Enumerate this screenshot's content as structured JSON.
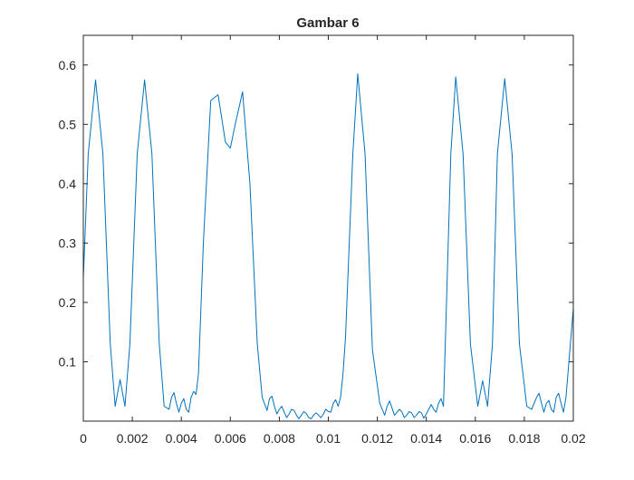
{
  "chart_data": {
    "type": "line",
    "title": "Gambar 6",
    "xlabel": "",
    "ylabel": "",
    "xlim": [
      0,
      0.02
    ],
    "ylim": [
      0,
      0.65
    ],
    "x_ticks": [
      0,
      0.002,
      0.004,
      0.006,
      0.008,
      0.01,
      0.012,
      0.014,
      0.016,
      0.018,
      0.02
    ],
    "x_tick_labels": [
      "0",
      "0.002",
      "0.004",
      "0.006",
      "0.008",
      "0.01",
      "0.012",
      "0.014",
      "0.016",
      "0.018",
      "0.02"
    ],
    "y_ticks": [
      0.1,
      0.2,
      0.3,
      0.4,
      0.5,
      0.6
    ],
    "y_tick_labels": [
      "0.1",
      "0.2",
      "0.3",
      "0.4",
      "0.5",
      "0.6"
    ],
    "grid": false,
    "line_color": "#0072BD",
    "series": [
      {
        "x": [
          0,
          0.0002,
          0.0005,
          0.0008,
          0.0011,
          0.0013,
          0.0015,
          0.0017,
          0.0019,
          0.0022,
          0.0025,
          0.0028,
          0.0031,
          0.0033,
          0.0035,
          0.0036,
          0.0037,
          0.0038,
          0.0039,
          0.004,
          0.0041,
          0.0042,
          0.0043,
          0.0044,
          0.0045,
          0.0046,
          0.0047,
          0.0049,
          0.0052,
          0.0055,
          0.0058,
          0.006,
          0.0062,
          0.0065,
          0.0068,
          0.0071,
          0.0073,
          0.0075,
          0.0076,
          0.0077,
          0.0078,
          0.0079,
          0.008,
          0.0081,
          0.0082,
          0.0083,
          0.0084,
          0.0085,
          0.0086,
          0.0087,
          0.0088,
          0.0089,
          0.009,
          0.0091,
          0.0092,
          0.0093,
          0.0094,
          0.0095,
          0.0096,
          0.0097,
          0.0098,
          0.0099,
          0.01,
          0.0101,
          0.0102,
          0.0103,
          0.0104,
          0.0105,
          0.0106,
          0.0107,
          0.011,
          0.0112,
          0.0115,
          0.0118,
          0.0121,
          0.0123,
          0.0124,
          0.0125,
          0.0126,
          0.0127,
          0.0128,
          0.0129,
          0.013,
          0.0131,
          0.0132,
          0.0133,
          0.0134,
          0.0135,
          0.0136,
          0.0137,
          0.0138,
          0.0139,
          0.014,
          0.0141,
          0.0142,
          0.0143,
          0.0144,
          0.0145,
          0.0146,
          0.0147,
          0.015,
          0.0152,
          0.0155,
          0.0158,
          0.0161,
          0.0163,
          0.0165,
          0.0167,
          0.0169,
          0.0172,
          0.0175,
          0.0178,
          0.0181,
          0.0183,
          0.0185,
          0.0186,
          0.0187,
          0.0188,
          0.0189,
          0.019,
          0.0191,
          0.0192,
          0.0193,
          0.0194,
          0.0195,
          0.0196,
          0.0197,
          0.0198,
          0.0199,
          0.02
        ],
        "y": [
          0.24,
          0.45,
          0.575,
          0.45,
          0.13,
          0.025,
          0.07,
          0.025,
          0.13,
          0.45,
          0.575,
          0.45,
          0.13,
          0.025,
          0.02,
          0.04,
          0.048,
          0.03,
          0.015,
          0.03,
          0.038,
          0.02,
          0.015,
          0.04,
          0.05,
          0.045,
          0.08,
          0.3,
          0.54,
          0.55,
          0.47,
          0.46,
          0.5,
          0.555,
          0.4,
          0.13,
          0.04,
          0.018,
          0.038,
          0.042,
          0.025,
          0.012,
          0.02,
          0.025,
          0.015,
          0.006,
          0.012,
          0.02,
          0.018,
          0.01,
          0.004,
          0.01,
          0.016,
          0.013,
          0.006,
          0.004,
          0.01,
          0.014,
          0.01,
          0.006,
          0.012,
          0.02,
          0.016,
          0.015,
          0.03,
          0.036,
          0.025,
          0.04,
          0.08,
          0.14,
          0.45,
          0.585,
          0.45,
          0.12,
          0.03,
          0.01,
          0.025,
          0.034,
          0.022,
          0.01,
          0.015,
          0.02,
          0.016,
          0.006,
          0.01,
          0.016,
          0.014,
          0.006,
          0.01,
          0.016,
          0.014,
          0.005,
          0.012,
          0.02,
          0.028,
          0.02,
          0.015,
          0.03,
          0.038,
          0.025,
          0.45,
          0.58,
          0.45,
          0.13,
          0.025,
          0.068,
          0.025,
          0.13,
          0.45,
          0.577,
          0.45,
          0.13,
          0.025,
          0.02,
          0.04,
          0.047,
          0.03,
          0.015,
          0.03,
          0.035,
          0.02,
          0.015,
          0.04,
          0.047,
          0.03,
          0.015,
          0.04,
          0.09,
          0.14,
          0.19
        ]
      }
    ]
  }
}
